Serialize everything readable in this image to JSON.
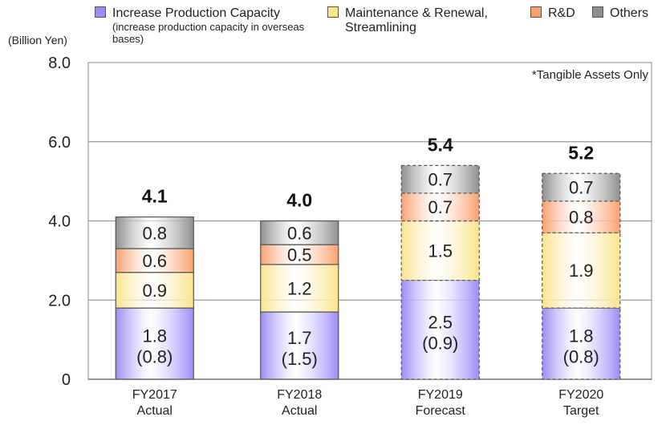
{
  "chart_data": {
    "type": "bar",
    "stacked": true,
    "ylabel": "(Billion Yen)",
    "ylim": [
      0,
      8
    ],
    "yticks": [
      "0",
      "2.0",
      "4.0",
      "6.0",
      "8.0"
    ],
    "categories": [
      "FY2017\nActual",
      "FY2018\nActual",
      "FY2019\nForecast",
      "FY2020\nTarget"
    ],
    "totals": [
      "4.1",
      "4.0",
      "5.4",
      "5.2"
    ],
    "note": "*Tangible Assets Only",
    "series": [
      {
        "name": "Increase Production Capacity",
        "sublabel": "(increase production capacity in overseas bases)",
        "color": "#9b8cf5",
        "values": [
          1.8,
          1.7,
          2.5,
          1.8
        ],
        "labels": [
          "1.8",
          "1.7",
          "2.5",
          "1.8"
        ],
        "sub_values": [
          "(0.8)",
          "(1.5)",
          "(0.9)",
          "(0.8)"
        ]
      },
      {
        "name": "Maintenance & Renewal, Streamlining",
        "color": "#fbe38a",
        "values": [
          0.9,
          1.2,
          1.5,
          1.9
        ],
        "labels": [
          "0.9",
          "1.2",
          "1.5",
          "1.9"
        ]
      },
      {
        "name": "R&D",
        "color": "#f9a06e",
        "values": [
          0.6,
          0.5,
          0.7,
          0.8
        ],
        "labels": [
          "0.6",
          "0.5",
          "0.7",
          "0.8"
        ]
      },
      {
        "name": "Others",
        "color": "#8e8e8e",
        "values": [
          0.8,
          0.6,
          0.7,
          0.7
        ],
        "labels": [
          "0.8",
          "0.6",
          "0.7",
          "0.7"
        ]
      }
    ],
    "dashed_categories": [
      2,
      3
    ],
    "grid": true,
    "legend_position": "top"
  }
}
